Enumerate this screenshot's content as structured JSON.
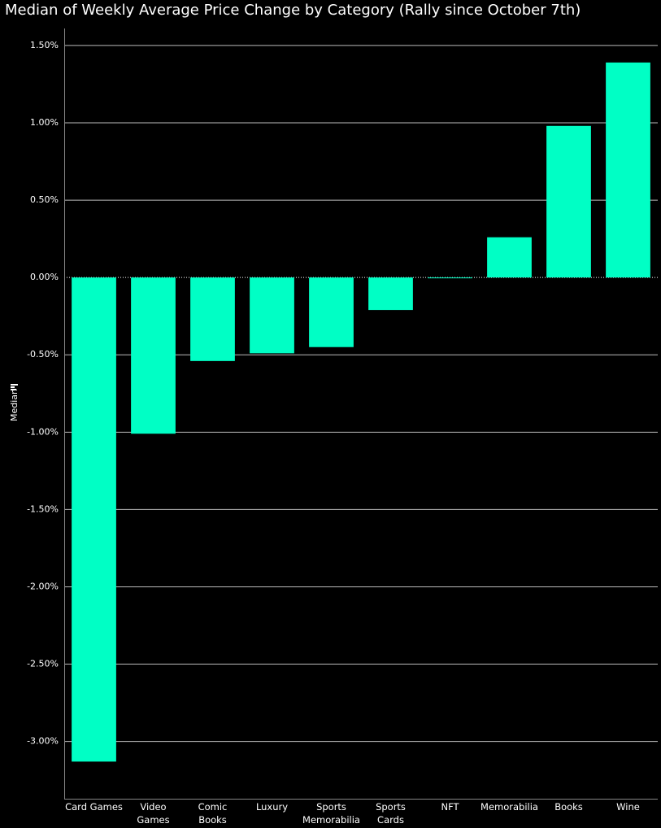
{
  "chart_data": {
    "type": "bar",
    "title": "Median of Weekly Average Price Change by Category (Rally since October 7th)",
    "y_label": "Median",
    "categories": [
      "Card Games",
      "Video Games",
      "Comic Books",
      "Luxury",
      "Sports Memorabilia",
      "Sports Cards",
      "NFT",
      "Memorabilia",
      "Books",
      "Wine"
    ],
    "values": [
      -3.13,
      -1.01,
      -0.54,
      -0.49,
      -0.45,
      -0.21,
      0.0,
      0.26,
      0.98,
      1.39
    ],
    "color": "#00ffc5",
    "ylim": [
      -3.37,
      1.61
    ],
    "yticks": [
      {
        "value": 1.5,
        "label": "1.50%"
      },
      {
        "value": 1.0,
        "label": "1.00%"
      },
      {
        "value": 0.5,
        "label": "0.50%"
      },
      {
        "value": 0.0,
        "label": "0.00%"
      },
      {
        "value": -0.5,
        "label": "-0.50%"
      },
      {
        "value": -1.0,
        "label": "-1.00%"
      },
      {
        "value": -1.5,
        "label": "-1.50%"
      },
      {
        "value": -2.0,
        "label": "-2.00%"
      },
      {
        "value": -2.5,
        "label": "-2.50%"
      },
      {
        "value": -3.0,
        "label": "-3.00%"
      }
    ],
    "grid": true
  }
}
